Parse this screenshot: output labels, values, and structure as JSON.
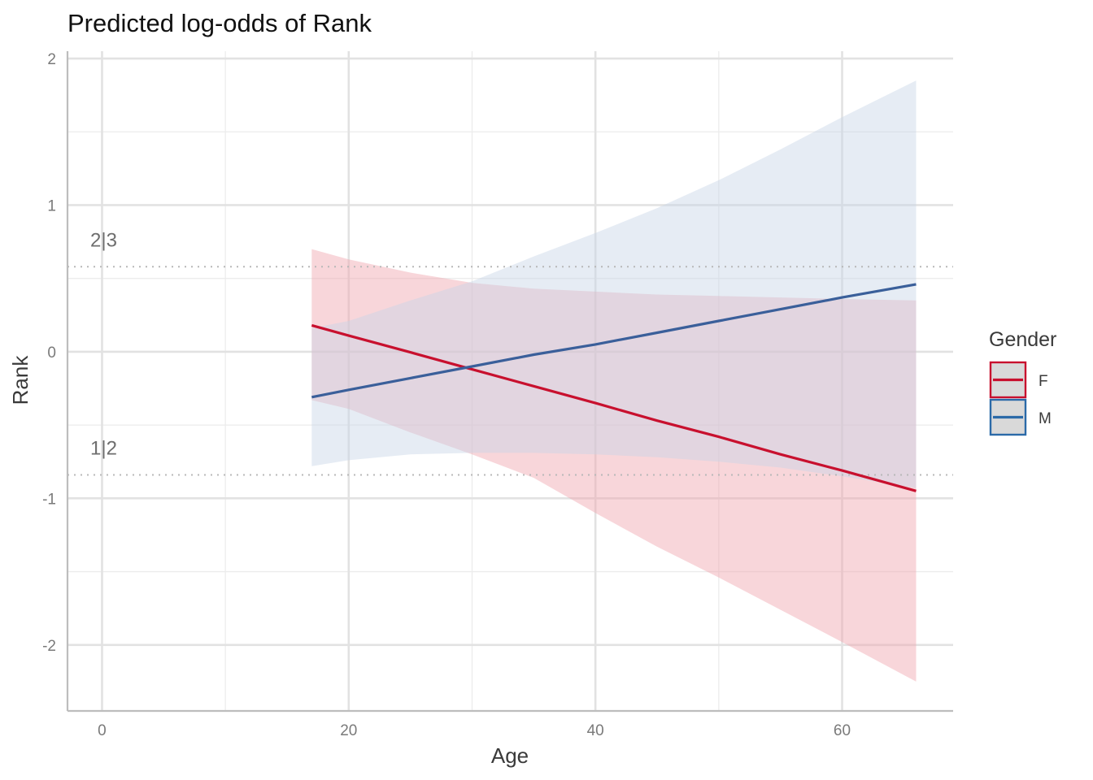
{
  "chart_data": {
    "type": "line",
    "title": "Predicted log-odds of Rank",
    "xlabel": "Age",
    "ylabel": "Rank",
    "xlim": [
      -2.8,
      69
    ],
    "ylim": [
      -2.45,
      2.05
    ],
    "x_ticks": [
      0,
      20,
      40,
      60
    ],
    "x_tick_labels": [
      "0",
      "20",
      "40",
      "60"
    ],
    "x_minor_ticks": [
      10,
      30,
      50
    ],
    "y_ticks": [
      -2,
      -1,
      0,
      1,
      2
    ],
    "y_tick_labels": [
      "-2",
      "-1",
      "0",
      "1",
      "2"
    ],
    "y_minor_ticks": [
      -1.5,
      -0.5,
      0.5,
      1.5
    ],
    "grid": true,
    "thresholds": [
      {
        "label": "2|3",
        "y": 0.58
      },
      {
        "label": "1|2",
        "y": -0.84
      }
    ],
    "legend": {
      "title": "Gender",
      "position": "right"
    },
    "series": [
      {
        "name": "F",
        "color": "#c8102e",
        "fill": "#f0a3ac",
        "x": [
          17,
          20,
          25,
          30,
          35,
          40,
          45,
          50,
          55,
          60,
          66
        ],
        "y": [
          0.18,
          0.11,
          -0.004,
          -0.12,
          -0.235,
          -0.35,
          -0.47,
          -0.58,
          -0.7,
          -0.81,
          -0.95
        ],
        "lower": [
          -0.33,
          -0.39,
          -0.55,
          -0.7,
          -0.86,
          -1.1,
          -1.33,
          -1.54,
          -1.76,
          -1.98,
          -2.25
        ],
        "upper": [
          0.7,
          0.63,
          0.54,
          0.47,
          0.43,
          0.41,
          0.39,
          0.38,
          0.37,
          0.36,
          0.35
        ]
      },
      {
        "name": "M",
        "color": "#3a5f9a",
        "legend_color": "#2b6aa8",
        "fill": "#c7d4e7",
        "x": [
          17,
          20,
          25,
          30,
          35,
          40,
          45,
          50,
          55,
          60,
          66
        ],
        "y": [
          -0.31,
          -0.26,
          -0.18,
          -0.1,
          -0.02,
          0.05,
          0.13,
          0.21,
          0.29,
          0.37,
          0.46
        ],
        "lower": [
          -0.78,
          -0.74,
          -0.7,
          -0.69,
          -0.69,
          -0.7,
          -0.72,
          -0.75,
          -0.79,
          -0.85,
          -0.93
        ],
        "upper": [
          0.16,
          0.21,
          0.35,
          0.48,
          0.65,
          0.81,
          0.98,
          1.17,
          1.38,
          1.6,
          1.85
        ]
      }
    ]
  }
}
